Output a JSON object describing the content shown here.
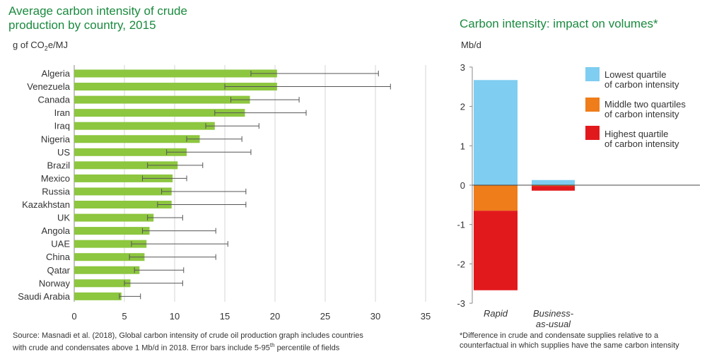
{
  "left": {
    "title_line1": "Average carbon intensity of crude",
    "title_line2": "production by country, 2015",
    "unit_main": "g of CO",
    "unit_sub": "2",
    "unit_tail": "e/MJ",
    "note_line1": "Source: Masnadi et al. (2018), Global carbon intensity of crude oil production graph includes countries",
    "note_line2_a": "with crude and condensates above 1 Mb/d in 2018. Error bars include 5-95",
    "note_line2_sup": "th",
    "note_line2_b": " percentile of fields"
  },
  "right": {
    "title": "Carbon intensity: impact on volumes*",
    "unit": "Mb/d",
    "note_line1": "*Difference in crude and condensate supplies relative to a",
    "note_line2": "counterfactual in which supplies have the same carbon intensity"
  },
  "colors": {
    "title_green": "#1a8a3f",
    "bar_green": "#8dc63f",
    "lowest": "#7fcdf0",
    "middle": "#ee7d1a",
    "highest": "#e2191c"
  },
  "chart_data": [
    {
      "type": "bar",
      "orientation": "horizontal",
      "title": "Average carbon intensity of crude production by country, 2015",
      "ylabel": "g of CO2e/MJ",
      "categories": [
        "Algeria",
        "Venezuela",
        "Canada",
        "Iran",
        "Iraq",
        "Nigeria",
        "US",
        "Brazil",
        "Mexico",
        "Russia",
        "Kazakhstan",
        "UK",
        "Angola",
        "UAE",
        "China",
        "Qatar",
        "Norway",
        "Saudi Arabia"
      ],
      "values": [
        20.2,
        20.2,
        17.5,
        17.0,
        14.0,
        12.5,
        11.2,
        10.3,
        9.8,
        9.7,
        9.7,
        7.9,
        7.5,
        7.2,
        7.0,
        6.5,
        5.6,
        4.7
      ],
      "err_low": [
        17.6,
        15.0,
        15.6,
        14.0,
        13.1,
        11.2,
        9.2,
        7.3,
        6.8,
        8.7,
        8.3,
        7.3,
        6.8,
        5.7,
        5.5,
        6.0,
        5.0,
        4.5
      ],
      "err_high": [
        30.3,
        31.5,
        22.4,
        23.1,
        18.4,
        16.7,
        17.6,
        12.8,
        11.2,
        17.1,
        17.1,
        10.8,
        14.1,
        15.3,
        14.1,
        10.9,
        10.8,
        6.6
      ],
      "xlim": [
        0,
        35
      ],
      "xticks": [
        0,
        5,
        10,
        15,
        20,
        25,
        30,
        35
      ],
      "grid": "vertical"
    },
    {
      "type": "bar",
      "stacked": true,
      "title": "Carbon intensity: impact on volumes*",
      "ylabel": "Mb/d",
      "categories": [
        "Rapid",
        "Business-as-usual"
      ],
      "series": [
        {
          "name": "Lowest quartile of carbon intensity",
          "values": [
            2.67,
            0.13
          ]
        },
        {
          "name": "Middle two quartiles of carbon intensity",
          "values": [
            -0.65,
            -0.02
          ]
        },
        {
          "name": "Highest quartile of carbon intensity",
          "values": [
            -2.02,
            -0.12
          ]
        }
      ],
      "ylim": [
        -3,
        3
      ],
      "yticks": [
        3,
        2,
        1,
        0,
        -1,
        -2,
        -3
      ],
      "legend": [
        {
          "line1": "Lowest quartile",
          "line2": "of carbon intensity"
        },
        {
          "line1": "Middle two quartiles",
          "line2": "of carbon intensity"
        },
        {
          "line1": "Highest quartile",
          "line2": "of carbon intensity"
        }
      ],
      "xtick_labels": [
        {
          "line1": "Rapid",
          "line2": ""
        },
        {
          "line1": "Business-",
          "line2": "as-usual"
        }
      ],
      "legend_position": "top-right"
    }
  ]
}
